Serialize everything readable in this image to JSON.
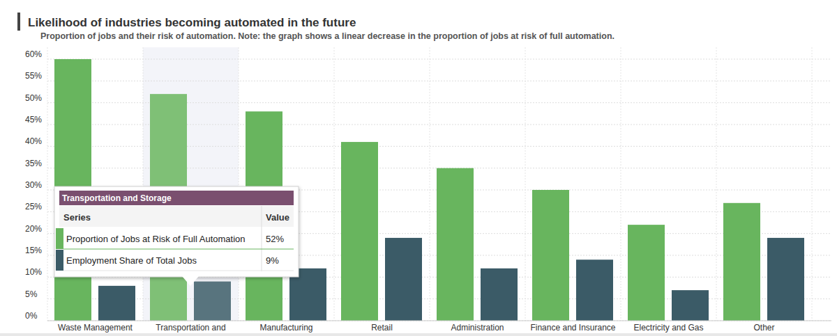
{
  "chart_data": {
    "type": "bar",
    "title": "Likelihood of industries becoming automated in the future",
    "subtitle": "Proportion of jobs and their risk of automation. Note: the graph shows a linear decrease in the proportion of jobs at risk of full automation.",
    "categories": [
      "Waste Management",
      "Transportation and",
      "Manufacturing",
      "Retail",
      "Administration",
      "Finance and Insurance",
      "Electricity and Gas",
      "Other"
    ],
    "series": [
      {
        "name": "Proportion of Jobs at Risk of Full Automation",
        "color": "#68b55e",
        "values": [
          60,
          52,
          48,
          41,
          35,
          30,
          22,
          27
        ]
      },
      {
        "name": "Employment Share of Total Jobs",
        "color": "#3b5b67",
        "values": [
          8,
          9,
          12,
          19,
          12,
          14,
          7,
          19
        ]
      }
    ],
    "ylim": [
      0,
      60
    ],
    "yticks": [
      {
        "value": 0,
        "label": "0%"
      },
      {
        "value": 5,
        "label": "5%"
      },
      {
        "value": 10,
        "label": "10%"
      },
      {
        "value": 15,
        "label": "15%"
      },
      {
        "value": 20,
        "label": "20%"
      },
      {
        "value": 25,
        "label": "25%"
      },
      {
        "value": 30,
        "label": "30%"
      },
      {
        "value": 35,
        "label": "35%"
      },
      {
        "value": 40,
        "label": "40%"
      },
      {
        "value": 45,
        "label": "45%"
      },
      {
        "value": 50,
        "label": "50%"
      },
      {
        "value": 55,
        "label": "55%"
      },
      {
        "value": 60,
        "label": "60%"
      }
    ],
    "grid": true,
    "tooltip": {
      "title": "Transportation and Storage",
      "header": [
        "Series",
        "Value"
      ],
      "value_labels": [
        "52%",
        "9%"
      ]
    }
  }
}
